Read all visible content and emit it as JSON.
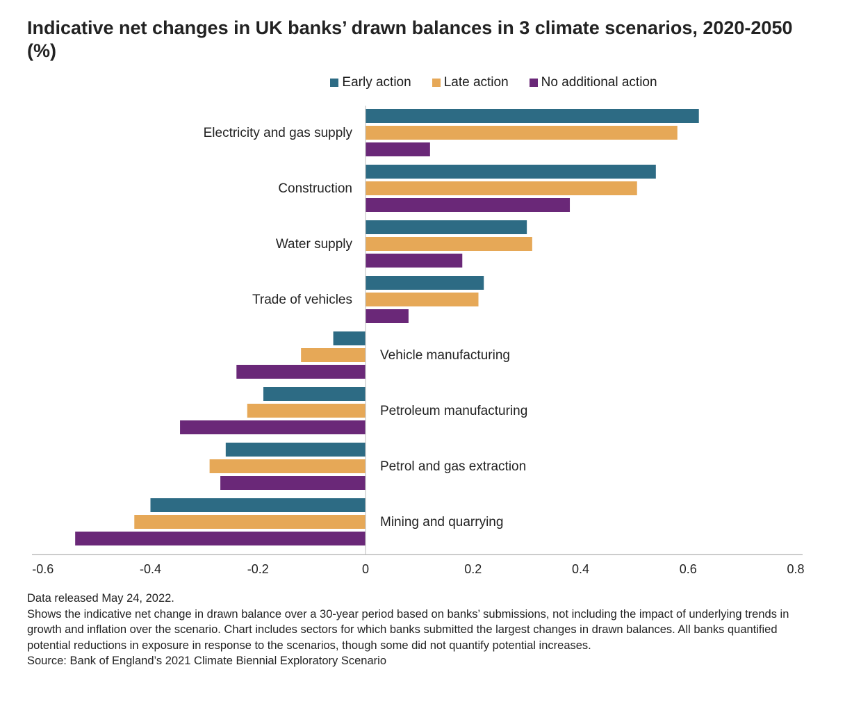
{
  "title": "Indicative net changes in UK banks’ drawn balances in 3 climate scenarios, 2020-2050 (%)",
  "colors": {
    "early": "#2D6B84",
    "late": "#E6A857",
    "none": "#6A2878"
  },
  "chart_data": {
    "type": "bar",
    "orientation": "horizontal",
    "title": "Indicative net changes in UK banks’ drawn balances in 3 climate scenarios, 2020-2050 (%)",
    "categories": [
      "Electricity and gas supply",
      "Construction",
      "Water supply",
      "Trade of vehicles",
      "Vehicle manufacturing",
      "Petroleum manufacturing",
      "Petrol and gas extraction",
      "Mining and quarrying"
    ],
    "series": [
      {
        "name": "Early action",
        "color": "#2D6B84",
        "values": [
          0.62,
          0.54,
          0.3,
          0.22,
          -0.06,
          -0.19,
          -0.26,
          -0.4
        ]
      },
      {
        "name": "Late action",
        "color": "#E6A857",
        "values": [
          0.58,
          0.505,
          0.31,
          0.21,
          -0.12,
          -0.22,
          -0.29,
          -0.43
        ]
      },
      {
        "name": "No additional action",
        "color": "#6A2878",
        "values": [
          0.12,
          0.38,
          0.18,
          0.08,
          -0.24,
          -0.345,
          -0.27,
          -0.54
        ]
      }
    ],
    "xlim": [
      -0.6,
      0.8
    ],
    "xticks": [
      "-0.6",
      "-0.4",
      "-0.2",
      "0",
      "0.2",
      "0.4",
      "0.6",
      "0.8"
    ],
    "xtick_values": [
      -0.6,
      -0.4,
      -0.2,
      0,
      0.2,
      0.4,
      0.6,
      0.8
    ],
    "legend": "top-center",
    "grid": false
  },
  "notes": {
    "released": "Data released May 24, 2022.",
    "description": "Shows the indicative net change in drawn balance over a 30-year period based on banks’ submissions, not including the impact of underlying trends in growth and inflation over the scenario. Chart includes sectors for which banks submitted the largest changes in drawn balances. All banks quantified potential reductions in exposure in response to the scenarios, though some did not quantify potential increases.",
    "source": "Source: Bank of England’s 2021 Climate Biennial Exploratory Scenario"
  }
}
